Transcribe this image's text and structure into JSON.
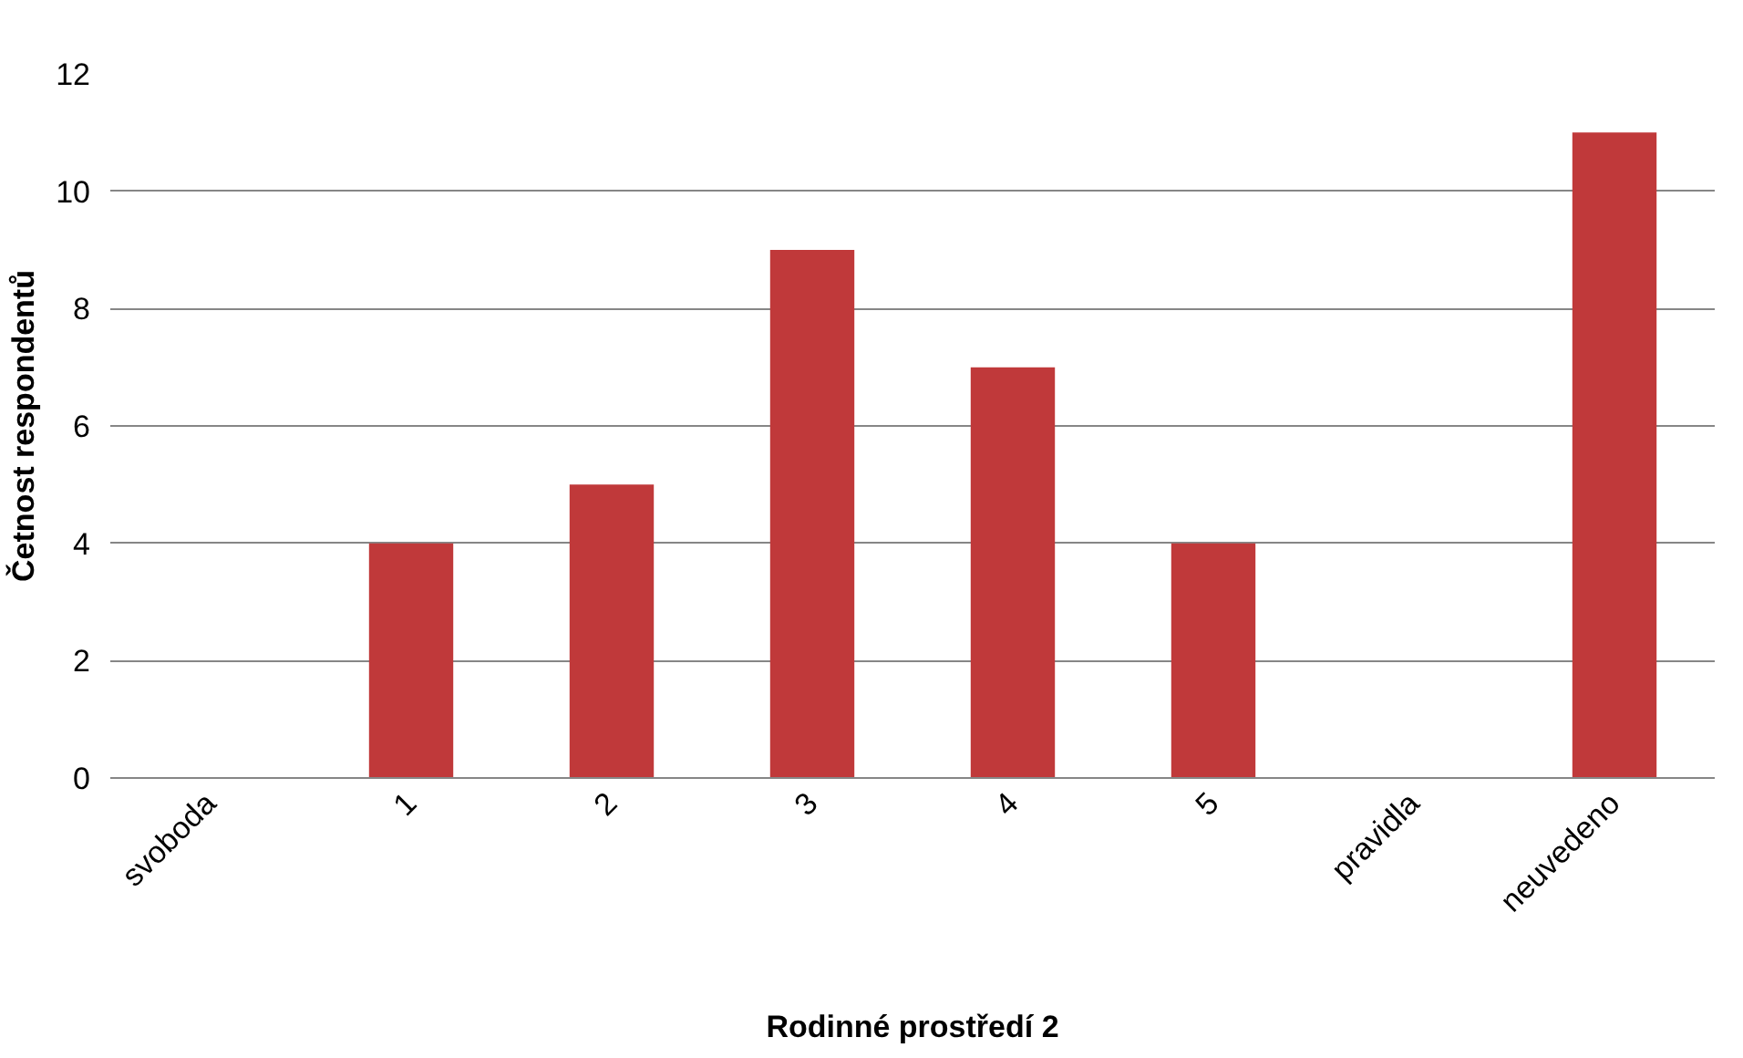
{
  "chart_data": {
    "type": "bar",
    "xlabel": "Rodinné prostředí 2",
    "ylabel": "Četnost respondentů",
    "categories": [
      "svoboda",
      "1",
      "2",
      "3",
      "4",
      "5",
      "pravidla",
      "neuvedeno"
    ],
    "values": [
      0,
      4,
      5,
      9,
      7,
      4,
      0,
      11
    ],
    "color": "#c0393a",
    "ylim": [
      0,
      12
    ],
    "yticks": [
      0,
      2,
      4,
      6,
      8,
      10,
      12
    ],
    "grid": "y"
  }
}
